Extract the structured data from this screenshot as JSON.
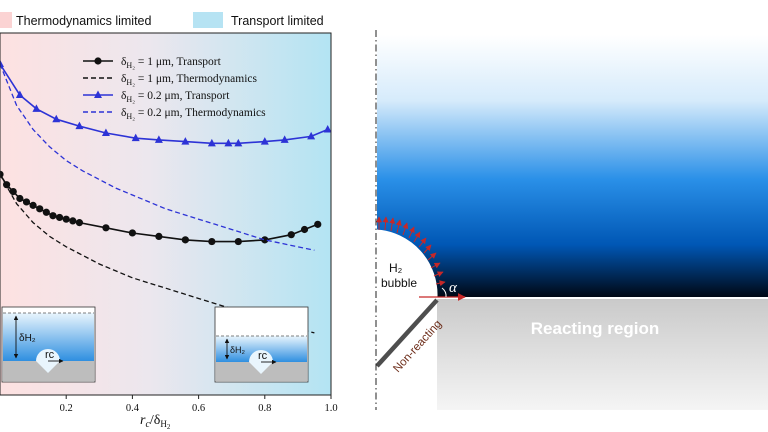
{
  "top_legend": {
    "thermo": {
      "label": "Thermodynamics limited",
      "color": "#fbd3d3"
    },
    "transport": {
      "label": "Transport limited",
      "color": "#b6e3f3"
    }
  },
  "chart_data": {
    "type": "line",
    "xlabel": "r_c/δ_H2",
    "xlim": [
      0,
      1.0
    ],
    "xticks": [
      0.2,
      0.4,
      0.6,
      0.8,
      1.0
    ],
    "xtick_labels": [
      "0.2",
      "0.4",
      "0.6",
      "0.8",
      "1.0"
    ],
    "ylim": [
      0.76,
      1.81
    ],
    "series": [
      {
        "name": "δ_H2 = 1 μm, Transport",
        "style": "solid",
        "marker": "circle",
        "color": "#111111",
        "x": [
          0.0,
          0.02,
          0.04,
          0.06,
          0.08,
          0.1,
          0.12,
          0.14,
          0.16,
          0.18,
          0.2,
          0.22,
          0.24,
          0.32,
          0.4,
          0.48,
          0.56,
          0.64,
          0.72,
          0.8,
          0.88,
          0.92,
          0.96
        ],
        "y": [
          1.4,
          1.37,
          1.35,
          1.33,
          1.32,
          1.31,
          1.3,
          1.29,
          1.28,
          1.275,
          1.27,
          1.265,
          1.26,
          1.245,
          1.23,
          1.22,
          1.21,
          1.205,
          1.205,
          1.21,
          1.225,
          1.24,
          1.255
        ]
      },
      {
        "name": "δ_H2 = 1 μm, Thermodynamics",
        "style": "dashed",
        "color": "#111111",
        "x": [
          0.0,
          0.05,
          0.1,
          0.15,
          0.2,
          0.25,
          0.3,
          0.35,
          0.4,
          0.45,
          0.5,
          0.55,
          0.6,
          0.65,
          0.7,
          0.75,
          0.8,
          0.85,
          0.9,
          0.95
        ],
        "y": [
          1.4,
          1.315,
          1.26,
          1.22,
          1.19,
          1.165,
          1.14,
          1.12,
          1.1,
          1.085,
          1.07,
          1.055,
          1.04,
          1.025,
          1.01,
          0.995,
          0.98,
          0.967,
          0.953,
          0.94
        ]
      },
      {
        "name": "δ_H2 = 0.2 μm, Transport",
        "style": "solid",
        "marker": "triangle",
        "color": "#2d33d6",
        "x": [
          0.0,
          0.06,
          0.11,
          0.17,
          0.24,
          0.32,
          0.41,
          0.48,
          0.56,
          0.64,
          0.69,
          0.72,
          0.8,
          0.86,
          0.94,
          0.99
        ],
        "y": [
          1.72,
          1.63,
          1.59,
          1.56,
          1.54,
          1.52,
          1.505,
          1.5,
          1.495,
          1.49,
          1.49,
          1.49,
          1.495,
          1.5,
          1.51,
          1.53
        ]
      },
      {
        "name": "δ_H2 = 0.2 μm, Thermodynamics",
        "style": "dashed",
        "color": "#2d33d6",
        "x": [
          0.0,
          0.05,
          0.1,
          0.15,
          0.2,
          0.25,
          0.3,
          0.35,
          0.4,
          0.45,
          0.5,
          0.55,
          0.6,
          0.65,
          0.7,
          0.75,
          0.8,
          0.85,
          0.9,
          0.95
        ],
        "y": [
          1.72,
          1.6,
          1.53,
          1.48,
          1.44,
          1.41,
          1.385,
          1.36,
          1.34,
          1.32,
          1.3,
          1.285,
          1.27,
          1.255,
          1.24,
          1.225,
          1.21,
          1.2,
          1.19,
          1.18
        ]
      }
    ],
    "legend_placement": "top-right"
  },
  "insets": {
    "delta_label": "δH₂",
    "rc_label": "rc"
  },
  "schematic": {
    "bubble_label_line1": "H₂",
    "bubble_label_line2": "bubble",
    "alpha_label": "α",
    "reacting_label": "Reacting region",
    "nonreacting_label": "Non-reacting"
  }
}
